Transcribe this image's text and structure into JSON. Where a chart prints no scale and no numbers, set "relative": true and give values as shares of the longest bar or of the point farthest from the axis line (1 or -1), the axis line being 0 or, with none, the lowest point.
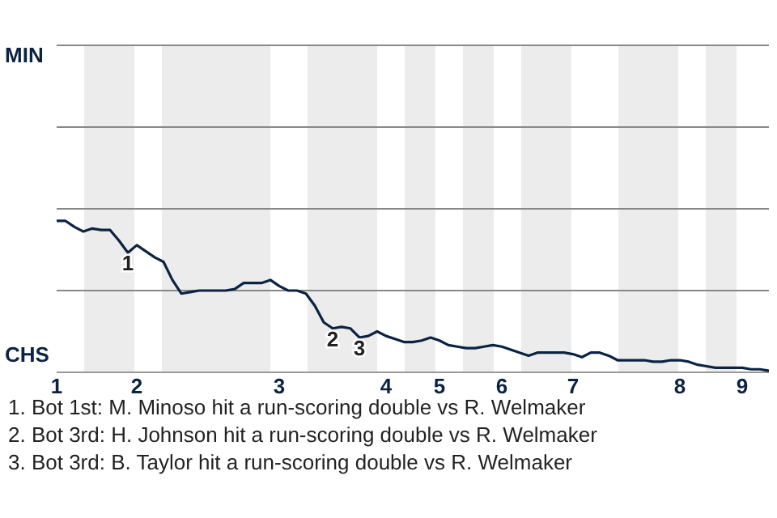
{
  "chart_data": {
    "type": "line",
    "relative": true,
    "categories": [
      "1",
      null,
      null,
      null,
      null,
      null,
      null,
      null,
      null,
      "2",
      null,
      null,
      null,
      null,
      null,
      null,
      null,
      null,
      null,
      null,
      null,
      null,
      null,
      null,
      null,
      "3",
      null,
      null,
      null,
      null,
      null,
      null,
      null,
      null,
      null,
      null,
      null,
      "4",
      null,
      null,
      null,
      null,
      null,
      "5",
      null,
      null,
      null,
      null,
      null,
      null,
      "6",
      null,
      null,
      null,
      null,
      null,
      null,
      null,
      "7",
      null,
      null,
      null,
      null,
      null,
      null,
      null,
      null,
      null,
      null,
      null,
      "8",
      null,
      null,
      null,
      null,
      null,
      null,
      "9",
      null,
      null,
      null
    ],
    "series": [
      {
        "color": "#0b2342",
        "values": [
          1.0,
          1.0,
          0.96,
          0.93,
          0.95,
          0.94,
          0.94,
          0.87,
          0.79,
          0.84,
          0.8,
          0.76,
          0.73,
          0.61,
          0.52,
          0.53,
          0.54,
          0.54,
          0.54,
          0.54,
          0.55,
          0.59,
          0.59,
          0.59,
          0.61,
          0.57,
          0.54,
          0.54,
          0.52,
          0.44,
          0.33,
          0.29,
          0.3,
          0.29,
          0.23,
          0.24,
          0.27,
          0.24,
          0.22,
          0.2,
          0.2,
          0.21,
          0.23,
          0.21,
          0.18,
          0.17,
          0.16,
          0.16,
          0.17,
          0.18,
          0.17,
          0.15,
          0.13,
          0.11,
          0.13,
          0.13,
          0.13,
          0.13,
          0.12,
          0.1,
          0.13,
          0.13,
          0.11,
          0.08,
          0.08,
          0.08,
          0.08,
          0.07,
          0.07,
          0.08,
          0.08,
          0.07,
          0.05,
          0.04,
          0.03,
          0.03,
          0.03,
          0.03,
          0.02,
          0.02,
          0.01
        ]
      }
    ],
    "ref_lines": [
      {
        "axis": "y",
        "value": 0.54,
        "color": "#888888"
      },
      {
        "axis": "y",
        "value": 1.08,
        "color": "#888888"
      },
      {
        "axis": "y",
        "value": 1.62,
        "color": "#888888"
      },
      {
        "axis": "y",
        "value": 2.16,
        "color": "#888888"
      }
    ],
    "annotations": [
      "MIN",
      "CHS",
      {
        "text": "1",
        "y": 0.8
      },
      {
        "text": "2",
        "y": 0.29
      },
      {
        "text": "3",
        "y": 0.23
      },
      "1. Bot 1st: M. Minoso hit a run-scoring double vs R. Welmaker",
      "2. Bot 3rd: H. Johnson hit a run-scoring double vs R. Welmaker",
      "3. Bot 3rd: B. Taylor hit a run-scoring double vs R. Welmaker"
    ]
  }
}
